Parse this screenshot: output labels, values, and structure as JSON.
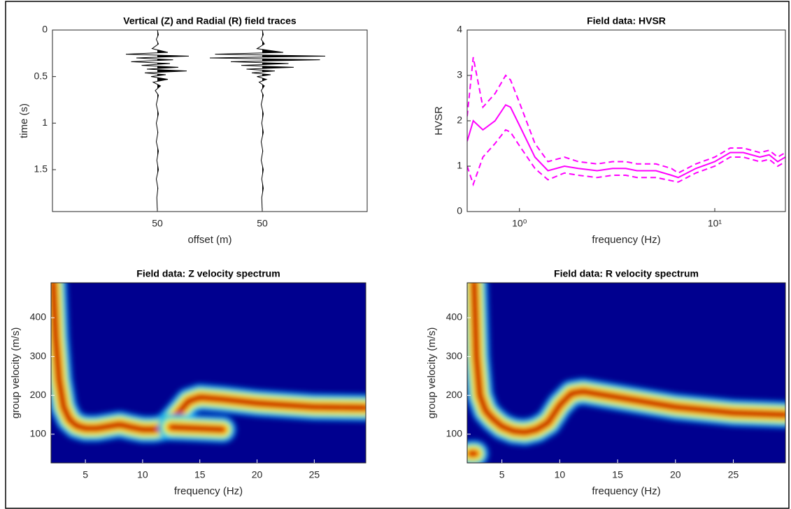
{
  "chart_data": [
    {
      "type": "wiggle",
      "title": "Vertical (Z) and Radial (R) field traces",
      "xlabel": "offset (m)",
      "ylabel": "time (s)",
      "xlim": [
        0,
        3
      ],
      "xticks": [
        {
          "value": 1,
          "label": "50"
        },
        {
          "value": 2,
          "label": "50"
        }
      ],
      "ylim": [
        0,
        1.95
      ],
      "yticks": [
        0,
        0.5,
        1,
        1.5
      ],
      "y_direction": "reverse",
      "time": [
        0,
        0.05,
        0.1,
        0.15,
        0.2,
        0.24,
        0.26,
        0.28,
        0.3,
        0.32,
        0.34,
        0.36,
        0.38,
        0.4,
        0.42,
        0.44,
        0.46,
        0.48,
        0.5,
        0.53,
        0.56,
        0.6,
        0.65,
        0.7,
        0.8,
        0.9,
        1.0,
        1.1,
        1.2,
        1.3,
        1.4,
        1.5,
        1.6,
        1.7,
        1.8,
        1.95
      ],
      "series": [
        {
          "offset": 1,
          "color": "#000000",
          "values": [
            0,
            0.01,
            -0.01,
            0.01,
            -0.05,
            0.1,
            -0.3,
            0.3,
            -0.2,
            0.15,
            -0.25,
            0.12,
            -0.15,
            0.2,
            -0.1,
            0.28,
            -0.12,
            0.08,
            -0.06,
            0.1,
            -0.04,
            0.03,
            -0.02,
            0.01,
            -0.01,
            0.01,
            -0.01,
            0.005,
            -0.01,
            0.01,
            -0.005,
            0.01,
            -0.01,
            0.005,
            -0.005,
            0
          ]
        },
        {
          "offset": 2,
          "color": "#000000",
          "values": [
            0,
            0.01,
            -0.01,
            0.02,
            -0.05,
            0.2,
            -0.45,
            0.6,
            -0.5,
            0.55,
            -0.3,
            0.25,
            -0.2,
            0.3,
            -0.15,
            0.12,
            -0.1,
            0.08,
            -0.05,
            0.04,
            -0.03,
            0.02,
            -0.01,
            0.01,
            -0.01,
            0.01,
            -0.005,
            0.01,
            -0.01,
            0.005,
            -0.01,
            0.01,
            -0.005,
            0.01,
            -0.005,
            0
          ]
        }
      ]
    },
    {
      "type": "line",
      "title": "Field data: HVSR",
      "xlabel": "frequency (Hz)",
      "ylabel": "HVSR",
      "xscale": "log",
      "xlim": [
        0.54,
        23
      ],
      "xticks": [
        {
          "value": 1,
          "label": "10⁰"
        },
        {
          "value": 10,
          "label": "10¹"
        }
      ],
      "ylim": [
        0,
        4
      ],
      "yticks": [
        0,
        1,
        2,
        3,
        4
      ],
      "x": [
        0.54,
        0.58,
        0.65,
        0.75,
        0.85,
        0.9,
        1.0,
        1.2,
        1.4,
        1.7,
        2,
        2.5,
        3,
        3.5,
        4,
        5,
        6,
        6.5,
        8,
        10,
        12,
        14,
        17,
        19,
        21,
        23
      ],
      "series": [
        {
          "color": "#ff00ff",
          "linestyle": "-",
          "values": [
            1.55,
            2.0,
            1.8,
            2.0,
            2.35,
            2.3,
            1.9,
            1.2,
            0.9,
            1.0,
            0.95,
            0.9,
            0.95,
            0.95,
            0.9,
            0.9,
            0.8,
            0.75,
            0.95,
            1.1,
            1.3,
            1.3,
            1.2,
            1.25,
            1.1,
            1.2
          ]
        },
        {
          "color": "#ff00ff",
          "linestyle": "--",
          "values": [
            2.1,
            3.4,
            2.3,
            2.6,
            3.0,
            2.9,
            2.4,
            1.5,
            1.1,
            1.2,
            1.1,
            1.05,
            1.1,
            1.1,
            1.05,
            1.05,
            0.95,
            0.85,
            1.05,
            1.2,
            1.4,
            1.4,
            1.3,
            1.35,
            1.2,
            1.3
          ]
        },
        {
          "color": "#ff00ff",
          "linestyle": "--",
          "values": [
            1.0,
            0.6,
            1.2,
            1.5,
            1.8,
            1.75,
            1.45,
            0.95,
            0.7,
            0.85,
            0.8,
            0.75,
            0.8,
            0.8,
            0.75,
            0.75,
            0.68,
            0.65,
            0.85,
            1.0,
            1.2,
            1.2,
            1.1,
            1.15,
            1.0,
            1.1
          ]
        }
      ]
    },
    {
      "type": "heatmap",
      "title": "Field data: Z velocity spectrum",
      "xlabel": "frequency (Hz)",
      "ylabel": "group velocity (m/s)",
      "xlim": [
        2,
        29.5
      ],
      "xticks": [
        5,
        10,
        15,
        20,
        25
      ],
      "ylim": [
        26,
        490
      ],
      "yticks": [
        100,
        200,
        300,
        400
      ],
      "ridges": [
        {
          "x": [
            2.2,
            2.4,
            2.7,
            3.1,
            3.6,
            4.2,
            5,
            6,
            7,
            8,
            9,
            10,
            11,
            12,
            13,
            14,
            15,
            17,
            20,
            25,
            29.5
          ],
          "values": [
            490,
            350,
            240,
            170,
            138,
            122,
            115,
            115,
            120,
            125,
            118,
            112,
            112,
            118,
            150,
            185,
            195,
            190,
            180,
            170,
            168
          ]
        },
        {
          "x": [
            12.5,
            14,
            15.5,
            17
          ],
          "values": [
            118,
            116,
            114,
            112
          ]
        }
      ]
    },
    {
      "type": "heatmap",
      "title": "Field data: R velocity spectrum",
      "xlabel": "frequency (Hz)",
      "ylabel": "group velocity (m/s)",
      "xlim": [
        2,
        29.5
      ],
      "xticks": [
        5,
        10,
        15,
        20,
        25
      ],
      "ylim": [
        26,
        490
      ],
      "yticks": [
        100,
        200,
        300,
        400
      ],
      "ridges": [
        {
          "x": [
            2.6,
            2.8,
            3.1,
            3.6,
            4.2,
            5,
            6,
            7,
            8,
            9,
            10,
            11,
            12,
            14,
            17,
            20,
            25,
            29.5
          ],
          "values": [
            490,
            300,
            200,
            160,
            140,
            120,
            108,
            105,
            112,
            130,
            175,
            205,
            210,
            200,
            185,
            170,
            155,
            150
          ]
        },
        {
          "x": [
            2.3,
            2.7
          ],
          "values": [
            50,
            50
          ]
        }
      ]
    }
  ]
}
